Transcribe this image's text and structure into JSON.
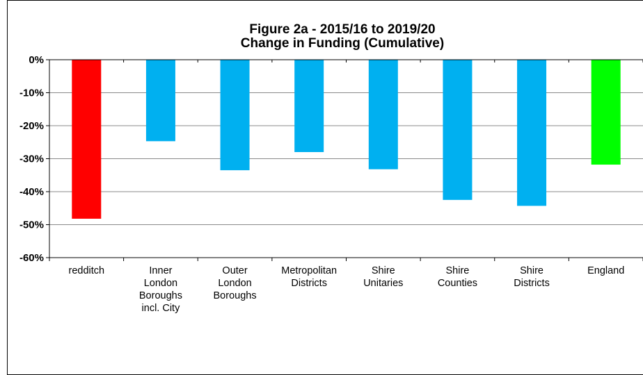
{
  "chart_data": {
    "type": "bar",
    "title": [
      "Figure 2a - 2015/16 to 2019/20",
      "Change in Funding (Cumulative)"
    ],
    "categories": [
      [
        "redditch"
      ],
      [
        "Inner",
        "London",
        "Boroughs",
        "incl. City"
      ],
      [
        "Outer",
        "London",
        "Boroughs"
      ],
      [
        "Metropolitan",
        "Districts"
      ],
      [
        "Shire",
        "Unitaries"
      ],
      [
        "Shire",
        "Counties"
      ],
      [
        "Shire",
        "Districts"
      ],
      [
        "England"
      ]
    ],
    "values": [
      -48.2,
      -24.7,
      -33.5,
      -28.0,
      -33.2,
      -42.5,
      -44.3,
      -31.8
    ],
    "colors": [
      "#ff0000",
      "#00b0f0",
      "#00b0f0",
      "#00b0f0",
      "#00b0f0",
      "#00b0f0",
      "#00b0f0",
      "#00ff00"
    ],
    "ylim": [
      -60,
      0
    ],
    "yticks": [
      0,
      -10,
      -20,
      -30,
      -40,
      -50,
      -60
    ],
    "ytick_labels": [
      "0%",
      "-10%",
      "-20%",
      "-30%",
      "-40%",
      "-50%",
      "-60%"
    ],
    "grid": true,
    "xlabel": "",
    "ylabel": ""
  }
}
